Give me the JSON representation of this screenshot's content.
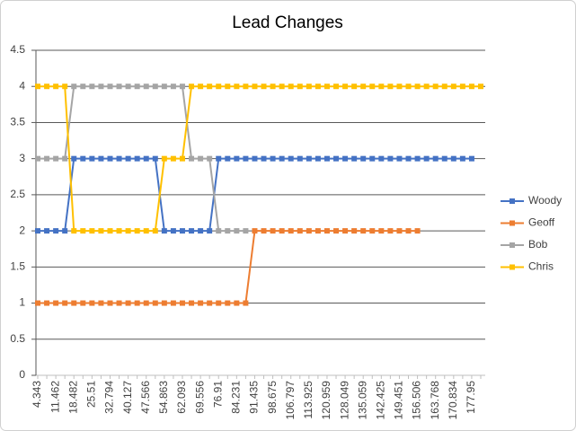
{
  "chart_data": {
    "type": "line",
    "title": "Lead Changes",
    "categories": [
      4.343,
      null,
      11.462,
      null,
      18.482,
      null,
      25.51,
      null,
      32.794,
      null,
      40.127,
      null,
      47.566,
      null,
      54.863,
      null,
      62.093,
      null,
      69.556,
      null,
      76.91,
      null,
      84.231,
      null,
      91.435,
      null,
      98.675,
      null,
      106.797,
      null,
      113.925,
      null,
      120.959,
      null,
      128.049,
      null,
      135.059,
      null,
      142.425,
      null,
      149.451,
      null,
      156.506,
      null,
      163.768,
      null,
      170.834,
      null,
      177.95,
      null
    ],
    "series": [
      {
        "name": "Woody",
        "color": "#4472c4",
        "values": [
          2,
          2,
          2,
          2,
          3,
          3,
          3,
          3,
          3,
          3,
          3,
          3,
          3,
          3,
          2,
          2,
          2,
          2,
          2,
          2,
          3,
          3,
          3,
          3,
          3,
          3,
          3,
          3,
          3,
          3,
          3,
          3,
          3,
          3,
          3,
          3,
          3,
          3,
          3,
          3,
          3,
          3,
          3,
          3,
          3,
          3,
          3,
          3,
          3,
          null
        ]
      },
      {
        "name": "Geoff",
        "color": "#ed7d31",
        "values": [
          1,
          1,
          1,
          1,
          1,
          1,
          1,
          1,
          1,
          1,
          1,
          1,
          1,
          1,
          1,
          1,
          1,
          1,
          1,
          1,
          1,
          1,
          1,
          1,
          2,
          2,
          2,
          2,
          2,
          2,
          2,
          2,
          2,
          2,
          2,
          2,
          2,
          2,
          2,
          2,
          2,
          2,
          2,
          null,
          null,
          null,
          null,
          null,
          null,
          null
        ]
      },
      {
        "name": "Bob",
        "color": "#a5a5a5",
        "values": [
          3,
          3,
          3,
          3,
          4,
          4,
          4,
          4,
          4,
          4,
          4,
          4,
          4,
          4,
          4,
          4,
          4,
          3,
          3,
          3,
          2,
          2,
          2,
          2,
          null,
          null,
          null,
          null,
          null,
          null,
          null,
          null,
          null,
          null,
          null,
          null,
          null,
          null,
          null,
          null,
          null,
          null,
          null,
          null,
          null,
          null,
          null,
          null,
          null,
          null
        ]
      },
      {
        "name": "Chris",
        "color": "#ffc000",
        "values": [
          4,
          4,
          4,
          4,
          2,
          2,
          2,
          2,
          2,
          2,
          2,
          2,
          2,
          2,
          3,
          3,
          3,
          4,
          4,
          4,
          4,
          4,
          4,
          4,
          4,
          4,
          4,
          4,
          4,
          4,
          4,
          4,
          4,
          4,
          4,
          4,
          4,
          4,
          4,
          4,
          4,
          4,
          4,
          4,
          4,
          4,
          4,
          4,
          4,
          4
        ]
      }
    ],
    "ylim": [
      0,
      4.5
    ],
    "yticks": [
      0,
      0.5,
      1,
      1.5,
      2,
      2.5,
      3,
      3.5,
      4,
      4.5
    ],
    "grid": true,
    "legend": "right"
  }
}
